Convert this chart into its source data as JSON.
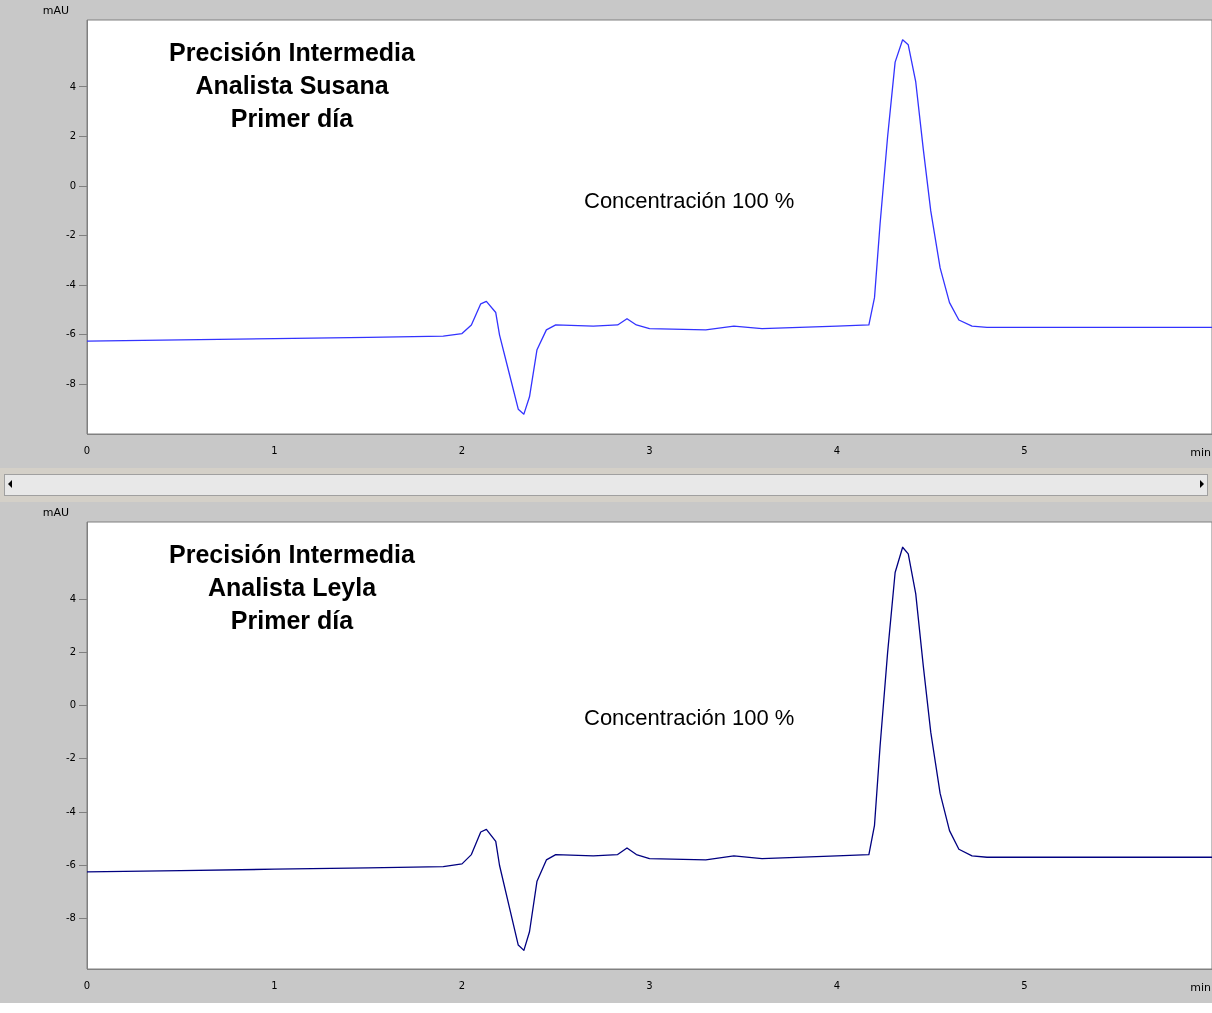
{
  "chart_data": [
    {
      "type": "line",
      "title": "Precisión Intermedia\nAnalista Susana\nPrimer día",
      "xlabel": "min",
      "ylabel": "mAU",
      "annotations": [
        "Concentración 100 %"
      ],
      "xlim": [
        0,
        6
      ],
      "xticks": [
        0,
        1,
        2,
        3,
        4,
        5
      ],
      "ylim": [
        -10,
        6.7
      ],
      "yticks": [
        -8,
        -6,
        -4,
        -2,
        0,
        2,
        4
      ],
      "grid": false,
      "legend": false,
      "marker": "none",
      "series": [
        {
          "color": "#3333ff",
          "x": [
            0,
            0.5,
            1,
            1.5,
            1.9,
            2.0,
            2.05,
            2.1,
            2.13,
            2.18,
            2.2,
            2.25,
            2.3,
            2.33,
            2.36,
            2.4,
            2.45,
            2.5,
            2.7,
            2.83,
            2.88,
            2.93,
            3.0,
            3.3,
            3.45,
            3.6,
            4.0,
            4.17,
            4.2,
            4.23,
            4.27,
            4.31,
            4.35,
            4.38,
            4.42,
            4.46,
            4.5,
            4.55,
            4.6,
            4.65,
            4.72,
            4.8,
            5.0,
            5.5,
            6.0
          ],
          "values": [
            -6.25,
            -6.2,
            -6.15,
            -6.1,
            -6.05,
            -5.95,
            -5.6,
            -4.75,
            -4.65,
            -5.1,
            -6.0,
            -7.5,
            -9.0,
            -9.2,
            -8.5,
            -6.6,
            -5.8,
            -5.6,
            -5.65,
            -5.6,
            -5.35,
            -5.6,
            -5.75,
            -5.8,
            -5.65,
            -5.75,
            -5.65,
            -5.6,
            -4.5,
            -1.5,
            2.0,
            5.0,
            5.9,
            5.7,
            4.2,
            1.5,
            -1.0,
            -3.3,
            -4.7,
            -5.4,
            -5.65,
            -5.7,
            -5.7,
            -5.7,
            -5.7
          ]
        }
      ]
    },
    {
      "type": "line",
      "title": "Precisión Intermedia\nAnalista Leyla\nPrimer día",
      "xlabel": "min",
      "ylabel": "mAU",
      "annotations": [
        "Concentración 100 %"
      ],
      "xlim": [
        0,
        6
      ],
      "xticks": [
        0,
        1,
        2,
        3,
        4,
        5
      ],
      "ylim": [
        -9.9,
        6.9
      ],
      "yticks": [
        -8,
        -6,
        -4,
        -2,
        0,
        2,
        4
      ],
      "grid": false,
      "legend": false,
      "marker": "none",
      "series": [
        {
          "color": "#000080",
          "x": [
            0,
            0.5,
            1,
            1.5,
            1.9,
            2.0,
            2.05,
            2.1,
            2.13,
            2.18,
            2.2,
            2.25,
            2.3,
            2.33,
            2.36,
            2.4,
            2.45,
            2.5,
            2.7,
            2.83,
            2.88,
            2.93,
            3.0,
            3.3,
            3.45,
            3.6,
            4.0,
            4.17,
            4.2,
            4.23,
            4.27,
            4.31,
            4.35,
            4.38,
            4.42,
            4.46,
            4.5,
            4.55,
            4.6,
            4.65,
            4.72,
            4.8,
            5.0,
            5.5,
            6.0
          ],
          "values": [
            -6.25,
            -6.2,
            -6.15,
            -6.1,
            -6.05,
            -5.95,
            -5.6,
            -4.75,
            -4.65,
            -5.1,
            -6.0,
            -7.5,
            -9.0,
            -9.2,
            -8.5,
            -6.6,
            -5.8,
            -5.6,
            -5.65,
            -5.6,
            -5.35,
            -5.6,
            -5.75,
            -5.8,
            -5.65,
            -5.75,
            -5.65,
            -5.6,
            -4.5,
            -1.5,
            2.0,
            5.0,
            5.95,
            5.7,
            4.2,
            1.5,
            -1.0,
            -3.3,
            -4.7,
            -5.4,
            -5.65,
            -5.7,
            -5.7,
            -5.7,
            -5.7
          ]
        }
      ]
    }
  ]
}
